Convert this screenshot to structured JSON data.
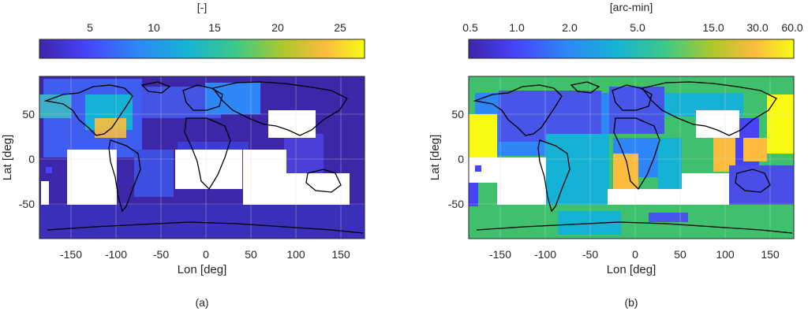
{
  "panel_a": {
    "colorbar_title": "[-]",
    "colorbar_ticks": [
      "5",
      "10",
      "15",
      "20",
      "25"
    ],
    "xlabel": "Lon [deg]",
    "ylabel": "Lat [deg]",
    "xticks": [
      "-150",
      "-100",
      "-50",
      "0",
      "50",
      "100",
      "150"
    ],
    "yticks": [
      "50",
      "0",
      "-50"
    ],
    "caption": "(a)"
  },
  "panel_b": {
    "colorbar_title": "[arc-min]",
    "colorbar_ticks": [
      "0.5",
      "1.0",
      "2.0",
      "5.0",
      "15.0",
      "30.0",
      "60.0"
    ],
    "xlabel": "Lon [deg]",
    "ylabel": "Lat [deg]",
    "xticks": [
      "-150",
      "-100",
      "-50",
      "0",
      "50",
      "100",
      "150"
    ],
    "yticks": [
      "50",
      "0",
      "-50"
    ],
    "caption": "(b)"
  },
  "colors": {
    "colormap": [
      "#3e26a8",
      "#4743f8",
      "#2e87f7",
      "#16b2d5",
      "#3bc98a",
      "#adc82a",
      "#fbbc3d",
      "#f9fb15"
    ],
    "coastline": "#000000",
    "grid": "#d9d9d9"
  }
}
